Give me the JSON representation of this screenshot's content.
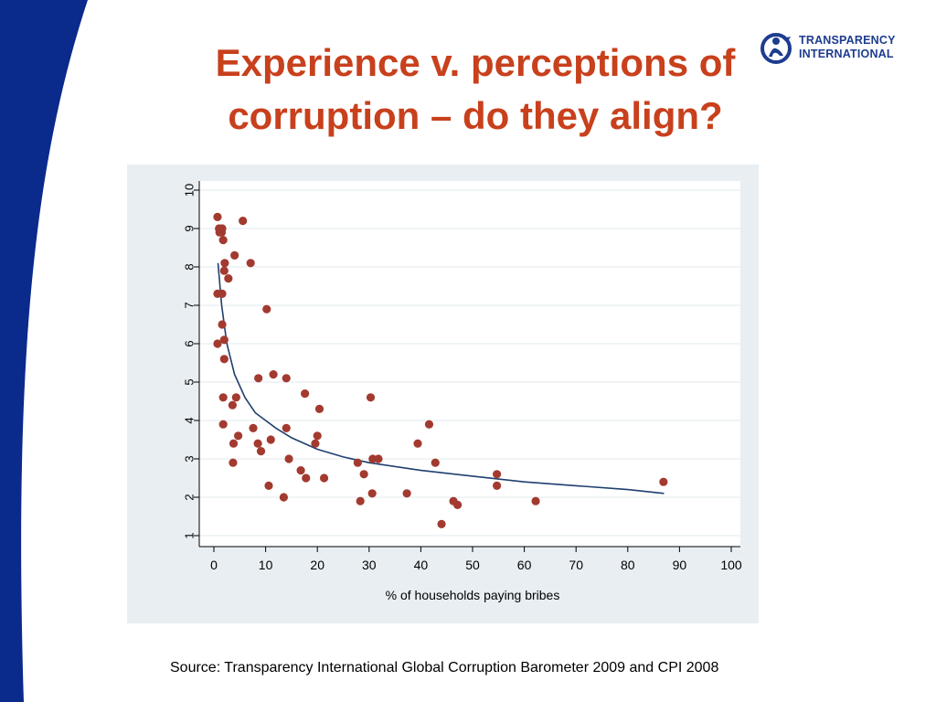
{
  "slide": {
    "title_line1": "Experience v. perceptions of",
    "title_line2": "corruption – do they align?",
    "source": "Source: Transparency International Global Corruption Barometer 2009 and CPI 2008",
    "colors": {
      "title": "#c8401c",
      "accent_blue": "#0a2a8c",
      "plot_background": "#e8eef2"
    }
  },
  "logo": {
    "line1": "TRANSPARENCY",
    "line2": "INTERNATIONAL",
    "color": "#1d3c8f",
    "icon": "ti-globe-logo-icon"
  },
  "chart_data": {
    "type": "scatter",
    "title": "",
    "xlabel": "% of households paying bribes",
    "ylabel": "",
    "xlim": [
      0,
      100
    ],
    "ylim": [
      1,
      10
    ],
    "xticks": [
      0,
      10,
      20,
      30,
      40,
      50,
      60,
      70,
      80,
      90,
      100
    ],
    "yticks": [
      1,
      2,
      3,
      4,
      5,
      6,
      7,
      8,
      9,
      10
    ],
    "grid": "horizontal",
    "marker_color": "#a33a30",
    "fit_color": "#1f3f6e",
    "points": [
      [
        0.7,
        9.3
      ],
      [
        1.0,
        9.0
      ],
      [
        1.1,
        8.9
      ],
      [
        1.6,
        9.0
      ],
      [
        1.5,
        8.9
      ],
      [
        1.8,
        8.7
      ],
      [
        2.1,
        8.1
      ],
      [
        2.0,
        7.9
      ],
      [
        2.8,
        7.7
      ],
      [
        4.0,
        8.3
      ],
      [
        5.6,
        9.2
      ],
      [
        7.1,
        8.1
      ],
      [
        0.7,
        7.3
      ],
      [
        1.6,
        7.3
      ],
      [
        1.6,
        6.5
      ],
      [
        0.7,
        6.0
      ],
      [
        2.0,
        6.1
      ],
      [
        2.0,
        5.6
      ],
      [
        10.2,
        6.9
      ],
      [
        1.8,
        4.6
      ],
      [
        4.3,
        4.6
      ],
      [
        3.6,
        4.4
      ],
      [
        1.8,
        3.9
      ],
      [
        4.7,
        3.6
      ],
      [
        3.8,
        3.4
      ],
      [
        3.7,
        2.9
      ],
      [
        8.6,
        5.1
      ],
      [
        11.5,
        5.2
      ],
      [
        14.0,
        5.1
      ],
      [
        7.6,
        3.8
      ],
      [
        8.5,
        3.4
      ],
      [
        9.1,
        3.2
      ],
      [
        11.0,
        3.5
      ],
      [
        14.0,
        3.8
      ],
      [
        10.6,
        2.3
      ],
      [
        13.5,
        2.0
      ],
      [
        14.5,
        3.0
      ],
      [
        17.6,
        4.7
      ],
      [
        20.4,
        4.3
      ],
      [
        20.0,
        3.6
      ],
      [
        19.6,
        3.4
      ],
      [
        16.8,
        2.7
      ],
      [
        17.8,
        2.5
      ],
      [
        21.3,
        2.5
      ],
      [
        30.3,
        4.6
      ],
      [
        30.7,
        3.0
      ],
      [
        31.8,
        3.0
      ],
      [
        27.8,
        2.9
      ],
      [
        29.0,
        2.6
      ],
      [
        28.3,
        1.9
      ],
      [
        30.6,
        2.1
      ],
      [
        37.3,
        2.1
      ],
      [
        41.6,
        3.9
      ],
      [
        39.4,
        3.4
      ],
      [
        42.8,
        2.9
      ],
      [
        46.3,
        1.9
      ],
      [
        47.1,
        1.8
      ],
      [
        44.0,
        1.3
      ],
      [
        54.7,
        2.6
      ],
      [
        54.7,
        2.3
      ],
      [
        62.2,
        1.9
      ],
      [
        86.9,
        2.4
      ]
    ],
    "fit_curve": [
      [
        0.8,
        8.1
      ],
      [
        1.5,
        7.0
      ],
      [
        2.5,
        6.0
      ],
      [
        4.0,
        5.2
      ],
      [
        6.0,
        4.6
      ],
      [
        8.0,
        4.2
      ],
      [
        10.0,
        4.0
      ],
      [
        12.0,
        3.8
      ],
      [
        15.0,
        3.55
      ],
      [
        20.0,
        3.25
      ],
      [
        25.0,
        3.05
      ],
      [
        30.0,
        2.9
      ],
      [
        40.0,
        2.7
      ],
      [
        50.0,
        2.55
      ],
      [
        60.0,
        2.4
      ],
      [
        70.0,
        2.3
      ],
      [
        80.0,
        2.2
      ],
      [
        87.0,
        2.1
      ]
    ]
  }
}
